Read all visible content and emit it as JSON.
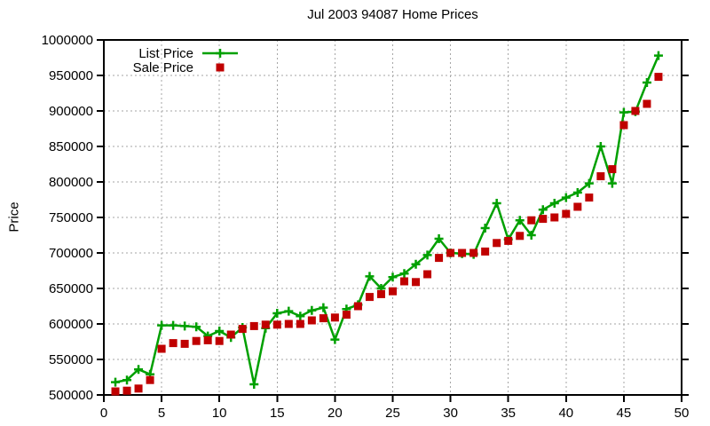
{
  "chart_data": {
    "type": "line",
    "title": "Jul 2003 94087 Home Prices",
    "xlabel": "",
    "ylabel": "Price",
    "xlim": [
      0,
      50
    ],
    "ylim": [
      500000,
      1000000
    ],
    "x_ticks": [
      0,
      5,
      10,
      15,
      20,
      25,
      30,
      35,
      40,
      45,
      50
    ],
    "y_ticks": [
      500000,
      550000,
      600000,
      650000,
      700000,
      750000,
      800000,
      850000,
      900000,
      950000,
      1000000
    ],
    "grid": true,
    "legend_position": "top-left",
    "colors": {
      "list": "#00a000",
      "sale": "#c00000",
      "grid": "#a6a6a6",
      "axis": "#000000"
    },
    "x": [
      1,
      2,
      3,
      4,
      5,
      6,
      7,
      8,
      9,
      10,
      11,
      12,
      13,
      14,
      15,
      16,
      17,
      18,
      19,
      20,
      21,
      22,
      23,
      24,
      25,
      26,
      27,
      28,
      29,
      30,
      31,
      32,
      33,
      34,
      35,
      36,
      37,
      38,
      39,
      40,
      41,
      42,
      43,
      44,
      45,
      46,
      47,
      48
    ],
    "series": [
      {
        "name": "List Price",
        "color": "#00a000",
        "marker": "plus",
        "line": true,
        "values": [
          518000,
          521000,
          536000,
          529000,
          598000,
          598000,
          597000,
          596000,
          583000,
          590000,
          581000,
          595000,
          515000,
          594000,
          615000,
          618000,
          611000,
          619000,
          623000,
          578000,
          621000,
          627000,
          667000,
          650000,
          666000,
          671000,
          684000,
          697000,
          720000,
          700000,
          699000,
          698000,
          735000,
          770000,
          719000,
          746000,
          725000,
          761000,
          770000,
          778000,
          785000,
          798000,
          850000,
          798000,
          898000,
          899000,
          940000,
          978000
        ]
      },
      {
        "name": "Sale Price",
        "color": "#c00000",
        "marker": "square",
        "line": false,
        "values": [
          505000,
          506000,
          509000,
          521000,
          565000,
          573000,
          572000,
          576000,
          577000,
          576000,
          585000,
          593000,
          597000,
          599000,
          599000,
          600000,
          600000,
          605000,
          608000,
          609000,
          613000,
          625000,
          638000,
          642000,
          646000,
          660000,
          659000,
          670000,
          693000,
          700000,
          700000,
          700000,
          702000,
          714000,
          717000,
          724000,
          746000,
          748000,
          750000,
          755000,
          765000,
          778000,
          808000,
          818000,
          880000,
          900000,
          910000,
          948000
        ]
      }
    ]
  }
}
